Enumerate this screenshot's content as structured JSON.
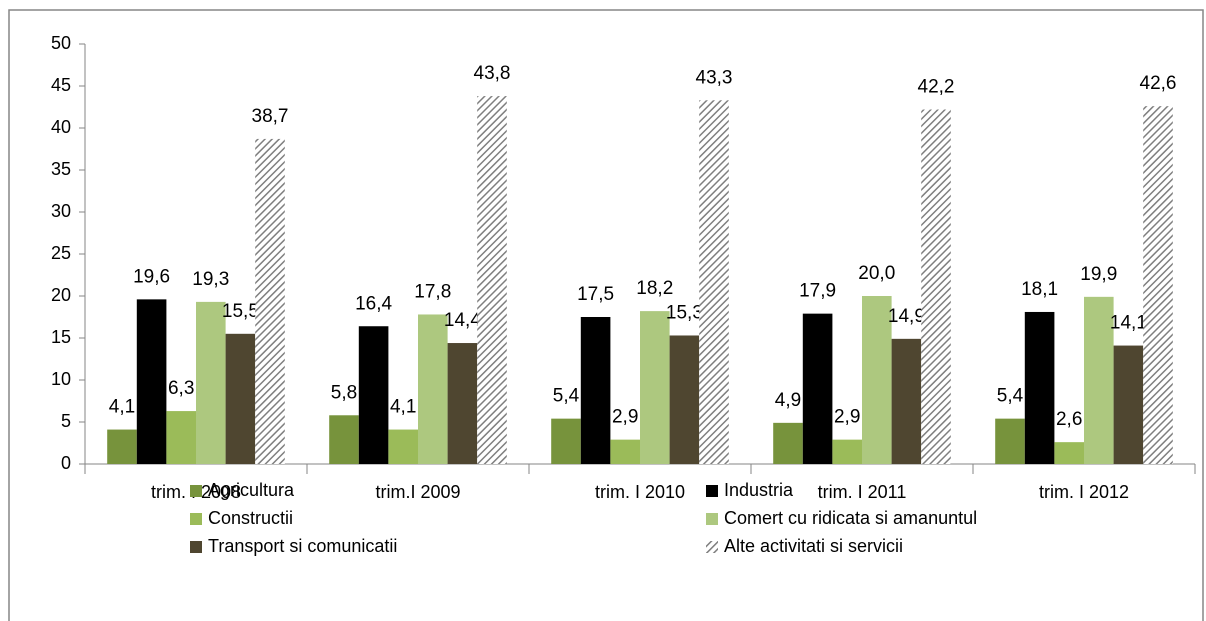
{
  "chart_data": {
    "type": "bar",
    "categories": [
      "trim. I 2008",
      "trim.I 2009",
      "trim. I 2010",
      "trim. I 2011",
      "trim. I 2012"
    ],
    "series": [
      {
        "name": "Agricultura",
        "color": "#77933c",
        "values": [
          4.1,
          5.8,
          5.4,
          4.9,
          5.4
        ],
        "value_labels": [
          "4,1",
          "5,8",
          "5,4",
          "4,9",
          "5,4"
        ]
      },
      {
        "name": "Industria",
        "color": "#000000",
        "values": [
          19.6,
          16.4,
          17.5,
          17.9,
          18.1
        ],
        "value_labels": [
          "19,6",
          "16,4",
          "17,5",
          "17,9",
          "18,1"
        ]
      },
      {
        "name": "Constructii",
        "color": "#9bbb59",
        "values": [
          6.3,
          4.1,
          2.9,
          2.9,
          2.6
        ],
        "value_labels": [
          "6,3",
          "4,1",
          "2,9",
          "2,9",
          "2,6"
        ]
      },
      {
        "name": "Comert cu ridicata si amanuntul",
        "color": "#adc87f",
        "values": [
          19.3,
          17.8,
          18.2,
          20.0,
          19.9
        ],
        "value_labels": [
          "19,3",
          "17,8",
          "18,2",
          "20,0",
          "19,9"
        ]
      },
      {
        "name": "Transport si comunicatii",
        "color": "#4f4630",
        "values": [
          15.5,
          14.4,
          15.3,
          14.9,
          14.1
        ],
        "value_labels": [
          "15,5",
          "14,4",
          "15,3",
          "14,9",
          "14,1"
        ]
      },
      {
        "name": "Alte activitati si servicii",
        "color": "#7f7f7f",
        "pattern": "diagonal-hatch",
        "values": [
          38.7,
          43.8,
          43.3,
          42.2,
          42.6
        ],
        "value_labels": [
          "38,7",
          "43,8",
          "43,3",
          "42,2",
          "42,6"
        ]
      }
    ],
    "ylim": [
      0,
      50
    ],
    "yticks": [
      0,
      5,
      10,
      15,
      20,
      25,
      30,
      35,
      40,
      45,
      50
    ],
    "grid": false,
    "legend": "bottom"
  }
}
